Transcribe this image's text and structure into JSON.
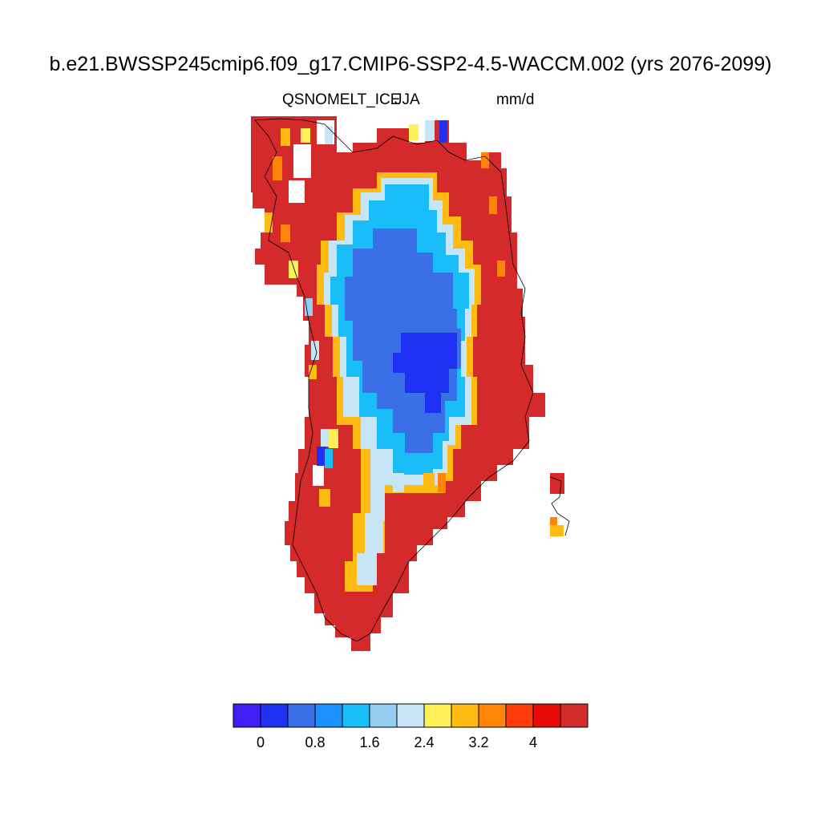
{
  "header": {
    "title": "b.e21.BWSSP245cmip6.f09_g17.CMIP6-SSP2-4.5-WACCM.002 (yrs 2076-2099)",
    "variable": "QSNOMELT_ICE",
    "season": "JJA",
    "units": "mm/d"
  },
  "colorbar": {
    "colors": [
      "#3f1ff5",
      "#1e31f3",
      "#3a6fe8",
      "#1b91ff",
      "#19bdf7",
      "#93cdf0",
      "#c6e6f7",
      "#fff05a",
      "#ffbb12",
      "#ff8508",
      "#ff3c09",
      "#e80a05",
      "#d52a2b"
    ],
    "tick_labels": [
      "0",
      "0.8",
      "1.6",
      "2.4",
      "3.2",
      "4"
    ],
    "tick_values": [
      0,
      0.8,
      1.6,
      2.4,
      3.2,
      4
    ],
    "bin_edges": [
      -0.4,
      0,
      0.4,
      0.8,
      1.2,
      1.6,
      2.0,
      2.4,
      2.8,
      3.2,
      3.6,
      4.0,
      4.4
    ]
  },
  "map": {
    "region": "Greenland",
    "projection": "polar stereographic",
    "fill_color": "#d52a2b",
    "coastline_color": "#000000"
  }
}
